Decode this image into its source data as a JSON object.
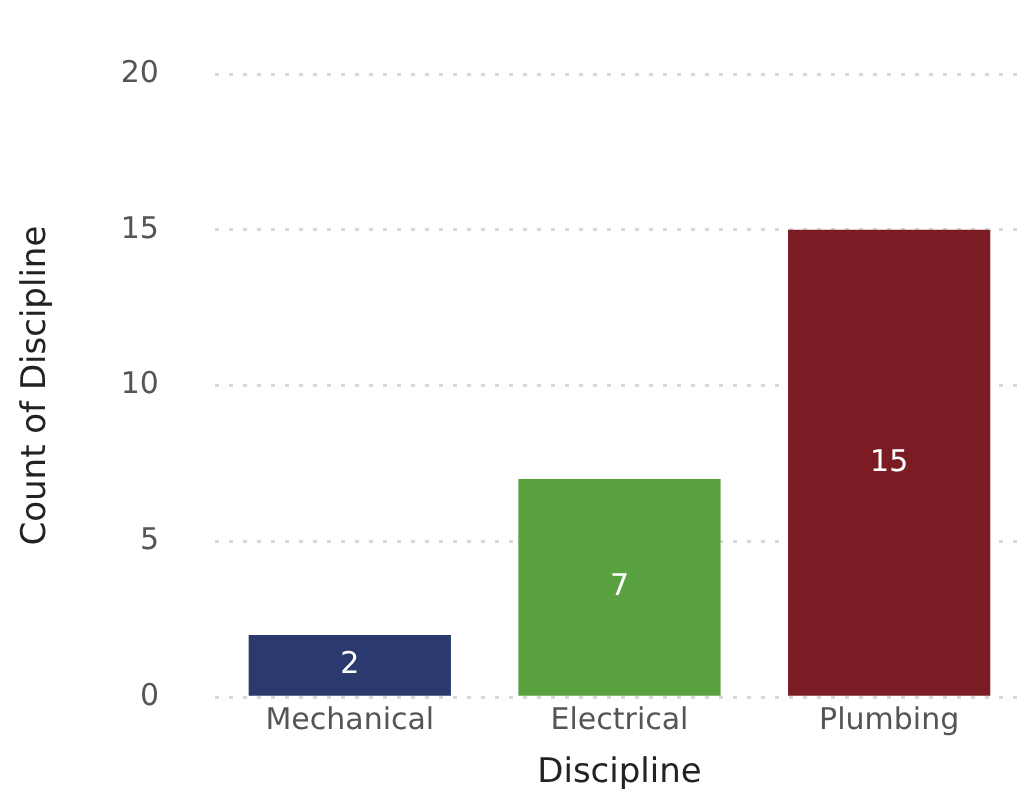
{
  "chart_data": {
    "type": "bar",
    "xlabel": "Discipline",
    "ylabel": "Count of Discipline",
    "categories": [
      "Mechanical",
      "Electrical",
      "Plumbing"
    ],
    "values": [
      2,
      7,
      15
    ],
    "colors": [
      "#2b3a6e",
      "#5aa13f",
      "#7b1c24"
    ],
    "ylim": [
      0,
      20
    ],
    "yticks": [
      0,
      5,
      10,
      15,
      20
    ],
    "grid": "y",
    "data_labels": true,
    "legend": false
  }
}
